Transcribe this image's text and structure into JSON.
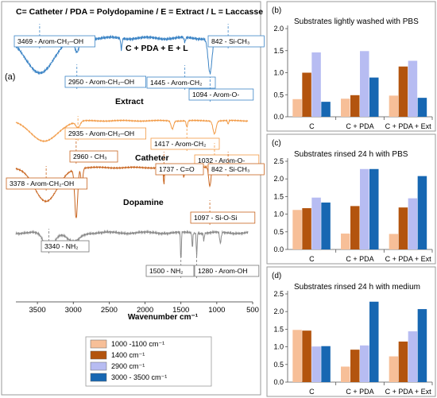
{
  "legend_key_text": "C= Catheter / PDA = Polydopamine / E = Extract / L = Laccasse",
  "colors": {
    "band_1000_1100": "#f7bf98",
    "band_1400": "#b3540e",
    "band_2900": "#b7bcf2",
    "band_3000_3500": "#1767b2",
    "spectrum_cpdael": "#3d85c6",
    "spectrum_extract": "#f29a45",
    "spectrum_catheter": "#c8641e",
    "spectrum_dopamine": "#8c8c8c"
  },
  "chart_data": [
    {
      "type": "line",
      "panel_label": "(a)",
      "xlabel": "Wavenumber cm⁻¹",
      "xlim": [
        3800,
        500
      ],
      "x_reversed": true,
      "xticks": [
        3500,
        3000,
        2500,
        2000,
        1500,
        1000,
        500
      ],
      "series": [
        {
          "name": "C + PDA + E + L"
        },
        {
          "name": "Extract"
        },
        {
          "name": "Catheter"
        },
        {
          "name": "Dopamine"
        }
      ],
      "annotations": [
        {
          "series": "C + PDA + E + L",
          "x": 3469,
          "label": "3469 - Arom-CH₂–OH"
        },
        {
          "series": "C + PDA + E + L",
          "x": 2950,
          "label": "2950 - Arom-CH₂–OH"
        },
        {
          "series": "C + PDA + E + L",
          "x": 1445,
          "label": "1445 - Arom-CH₂"
        },
        {
          "series": "C + PDA + E + L",
          "x": 1094,
          "label": "1094 - Arom-O-"
        },
        {
          "series": "C + PDA + E + L",
          "x": 842,
          "label": "842 - Si-CH₃"
        },
        {
          "series": "Extract",
          "x": 2935,
          "label": "2935 - Arom-CH₂–OH"
        },
        {
          "series": "Extract",
          "x": 1417,
          "label": "1417 - Arom-CH₂"
        },
        {
          "series": "Extract",
          "x": 1032,
          "label": "1032 - Arom-O-"
        },
        {
          "series": "Catheter",
          "x": 3378,
          "label": "3378 - Arom-CH₂-OH"
        },
        {
          "series": "Catheter",
          "x": 2960,
          "label": "2960 - CH₃"
        },
        {
          "series": "Catheter",
          "x": 1737,
          "label": "1737 - C=O"
        },
        {
          "series": "Catheter",
          "x": 842,
          "label": "842 - Si-CH₃"
        },
        {
          "series": "Catheter",
          "x": 1097,
          "label": "1097 - Si-O-Si"
        },
        {
          "series": "Dopamine",
          "x": 3340,
          "label": "3340 - NH₂"
        },
        {
          "series": "Dopamine",
          "x": 1500,
          "label": "1500 - NH₂"
        },
        {
          "series": "Dopamine",
          "x": 1280,
          "label": "1280 - Arom-OH"
        }
      ],
      "legend": {
        "placement": "bottom",
        "entries": [
          "1000 -1100 cm⁻¹",
          "1400 cm⁻¹",
          "2900 cm⁻¹",
          "3000 - 3500 cm⁻¹"
        ]
      }
    },
    {
      "type": "bar",
      "panel_label": "(b)",
      "title": "Substrates lightly washed with PBS",
      "categories": [
        "C",
        "C + PDA",
        "C + PDA + Ext"
      ],
      "ylim": [
        0,
        2.0
      ],
      "yticks": [
        "0.0",
        "0.5",
        "1.0",
        "1.5",
        "2.0"
      ],
      "series": [
        {
          "name": "1000 -1100 cm⁻¹",
          "values": [
            0.4,
            0.41,
            0.48
          ]
        },
        {
          "name": "1400 cm⁻¹",
          "values": [
            1.0,
            0.49,
            1.14
          ]
        },
        {
          "name": "2900 cm⁻¹",
          "values": [
            1.46,
            1.49,
            1.27
          ]
        },
        {
          "name": "3000 - 3500 cm⁻¹",
          "values": [
            0.34,
            0.89,
            0.43
          ]
        }
      ]
    },
    {
      "type": "bar",
      "panel_label": "(c)",
      "title": "Substrates rinsed 24 h with PBS",
      "categories": [
        "C",
        "C + PDA",
        "C + PDA + Ext"
      ],
      "ylim": [
        0,
        2.5
      ],
      "yticks": [
        "0.0",
        "0.5",
        "1.0",
        "1.5",
        "2.0",
        "2.5"
      ],
      "series": [
        {
          "name": "1000 -1100 cm⁻¹",
          "values": [
            1.12,
            0.45,
            0.44
          ]
        },
        {
          "name": "1400 cm⁻¹",
          "values": [
            1.17,
            1.23,
            1.19
          ]
        },
        {
          "name": "2900 cm⁻¹",
          "values": [
            1.47,
            2.28,
            1.45
          ]
        },
        {
          "name": "3000 - 3500 cm⁻¹",
          "values": [
            1.33,
            2.28,
            2.08
          ]
        }
      ]
    },
    {
      "type": "bar",
      "panel_label": "(d)",
      "title": "Substrates rinsed 24 h with medium",
      "categories": [
        "C",
        "C + PDA",
        "C + PDA + Ext"
      ],
      "ylim": [
        0,
        2.5
      ],
      "yticks": [
        "0.0",
        "0.5",
        "1.0",
        "1.5",
        "2.0",
        "2.5"
      ],
      "series": [
        {
          "name": "1000 -1100 cm⁻¹",
          "values": [
            1.48,
            0.44,
            0.73
          ]
        },
        {
          "name": "1400 cm⁻¹",
          "values": [
            1.46,
            0.92,
            1.15
          ]
        },
        {
          "name": "2900 cm⁻¹",
          "values": [
            1.01,
            1.04,
            1.44
          ]
        },
        {
          "name": "3000 - 3500 cm⁻¹",
          "values": [
            1.02,
            2.28,
            2.07
          ]
        }
      ]
    }
  ]
}
